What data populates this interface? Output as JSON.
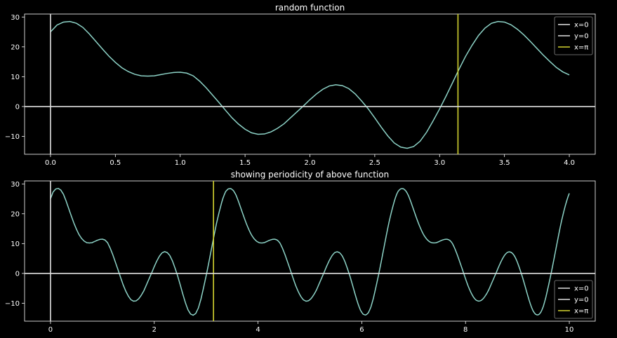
{
  "chart_data": [
    {
      "type": "line",
      "title": "random function",
      "xlabel": "",
      "ylabel": "",
      "xlim": [
        -0.2,
        4.2
      ],
      "ylim": [
        -16,
        31
      ],
      "xticks": [
        0.0,
        0.5,
        1.0,
        1.5,
        2.0,
        2.5,
        3.0,
        3.5,
        4.0
      ],
      "xtick_labels": [
        "0.0",
        "0.5",
        "1.0",
        "1.5",
        "2.0",
        "2.5",
        "3.0",
        "3.5",
        "4.0"
      ],
      "yticks": [
        -10,
        0,
        10,
        20,
        30
      ],
      "ytick_labels": [
        "−10",
        "0",
        "10",
        "20",
        "30"
      ],
      "grid": false,
      "legend_position": "top-right",
      "series": [
        {
          "x": [
            0.0,
            0.05,
            0.1,
            0.15,
            0.2,
            0.25,
            0.3,
            0.35,
            0.4,
            0.45,
            0.5,
            0.55,
            0.6,
            0.65,
            0.7,
            0.75,
            0.8,
            0.85,
            0.9,
            0.95,
            1.0,
            1.05,
            1.1,
            1.15,
            1.2,
            1.25,
            1.3,
            1.35,
            1.4,
            1.45,
            1.5,
            1.55,
            1.6,
            1.65,
            1.7,
            1.75,
            1.8,
            1.85,
            1.9,
            1.95,
            2.0,
            2.05,
            2.1,
            2.15,
            2.2,
            2.25,
            2.3,
            2.35,
            2.4,
            2.45,
            2.5,
            2.55,
            2.6,
            2.65,
            2.7,
            2.75,
            2.8,
            2.85,
            2.9,
            2.95,
            3.0,
            3.05,
            3.1,
            3.15,
            3.2,
            3.25,
            3.3,
            3.35,
            3.4,
            3.45,
            3.5,
            3.55,
            3.6,
            3.65,
            3.7,
            3.75,
            3.8,
            3.85,
            3.9,
            3.95,
            4.0
          ],
          "y": [
            25.0,
            27.3,
            28.3,
            28.5,
            27.9,
            26.5,
            24.3,
            21.8,
            19.3,
            16.9,
            14.8,
            13.0,
            11.7,
            10.8,
            10.3,
            10.2,
            10.3,
            10.7,
            11.1,
            11.4,
            11.5,
            11.2,
            10.3,
            8.5,
            6.3,
            3.8,
            1.3,
            -1.3,
            -3.8,
            -5.9,
            -7.6,
            -8.8,
            -9.3,
            -9.2,
            -8.5,
            -7.3,
            -5.8,
            -3.8,
            -1.8,
            0.2,
            2.3,
            4.2,
            5.8,
            6.9,
            7.3,
            7.0,
            6.0,
            4.2,
            1.8,
            -0.8,
            -3.8,
            -6.9,
            -9.8,
            -12.2,
            -13.6,
            -14.0,
            -13.4,
            -11.6,
            -8.6,
            -4.8,
            -0.8,
            3.5,
            8.0,
            12.5,
            16.8,
            20.5,
            23.8,
            26.3,
            27.9,
            28.5,
            28.3,
            27.4,
            25.9,
            24.0,
            21.8,
            19.5,
            17.2,
            15.1,
            13.1,
            11.6,
            10.6
          ]
        }
      ],
      "vlines": [
        {
          "x": 0,
          "color": "#e0e0e0"
        },
        {
          "x": 3.14159,
          "color": "#d4d430"
        }
      ],
      "hlines": [
        {
          "y": 0,
          "color": "#e0e0e0"
        }
      ],
      "legend": [
        {
          "label": "x=0",
          "color": "#e0e0e0"
        },
        {
          "label": "y=0",
          "color": "#e0e0e0"
        },
        {
          "label": "x=π",
          "color": "#d4d430"
        }
      ],
      "line_color": "#8dd3c7"
    },
    {
      "type": "line",
      "title": "showing periodicity of above function",
      "xlabel": "",
      "ylabel": "",
      "xlim": [
        -0.5,
        10.5
      ],
      "ylim": [
        -16,
        31
      ],
      "xticks": [
        0,
        2,
        4,
        6,
        8,
        10
      ],
      "xtick_labels": [
        "0",
        "2",
        "4",
        "6",
        "8",
        "10"
      ],
      "yticks": [
        -10,
        0,
        10,
        20,
        30
      ],
      "ytick_labels": [
        "−10",
        "0",
        "10",
        "20",
        "30"
      ],
      "grid": false,
      "legend_position": "bottom-right",
      "period": 3.32,
      "x_max": 10,
      "vlines": [
        {
          "x": 0,
          "color": "#e0e0e0"
        },
        {
          "x": 3.14159,
          "color": "#d4d430"
        }
      ],
      "hlines": [
        {
          "y": 0,
          "color": "#e0e0e0"
        }
      ],
      "legend": [
        {
          "label": "x=0",
          "color": "#e0e0e0"
        },
        {
          "label": "y=0",
          "color": "#e0e0e0"
        },
        {
          "label": "x=π",
          "color": "#d4d430"
        }
      ],
      "line_color": "#8dd3c7"
    }
  ]
}
